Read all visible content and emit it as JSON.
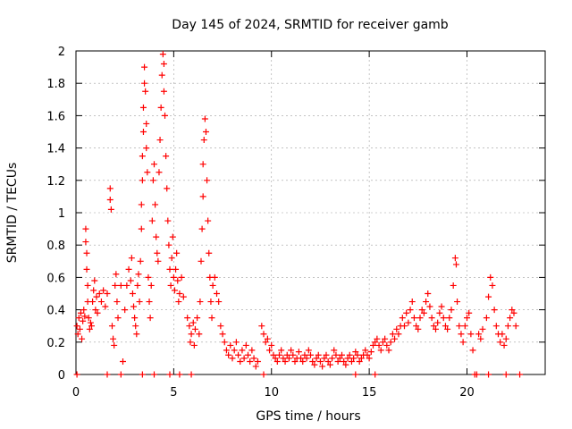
{
  "chart_data": {
    "type": "scatter",
    "title": "Day 145 of 2024, SRMTID for receiver gamb",
    "xlabel": "GPS time / hours",
    "ylabel": "SRMTID / TECUs",
    "xlim": [
      0,
      24
    ],
    "ylim": [
      0,
      2
    ],
    "xticks": [
      "0",
      "5",
      "10",
      "15",
      "20"
    ],
    "yticks": [
      "0",
      "0.2",
      "0.4",
      "0.6",
      "0.8",
      "1",
      "1.2",
      "1.4",
      "1.6",
      "1.8",
      "2"
    ],
    "grid": true,
    "marker": "+",
    "color": "#ff0000",
    "series": [
      {
        "name": "SRMTID",
        "points": [
          [
            0.05,
            0.3
          ],
          [
            0.1,
            0.25
          ],
          [
            0.15,
            0.35
          ],
          [
            0.2,
            0.28
          ],
          [
            0.25,
            0.38
          ],
          [
            0.3,
            0.22
          ],
          [
            0.35,
            0.33
          ],
          [
            0.4,
            0.4
          ],
          [
            0.45,
            0.36
          ],
          [
            0.5,
            0.9
          ],
          [
            0.5,
            0.82
          ],
          [
            0.55,
            0.75
          ],
          [
            0.55,
            0.65
          ],
          [
            0.6,
            0.55
          ],
          [
            0.6,
            0.45
          ],
          [
            0.65,
            0.35
          ],
          [
            0.7,
            0.28
          ],
          [
            0.75,
            0.32
          ],
          [
            0.8,
            0.3
          ],
          [
            0.85,
            0.45
          ],
          [
            0.9,
            0.52
          ],
          [
            0.95,
            0.58
          ],
          [
            1.0,
            0.4
          ],
          [
            1.05,
            0.48
          ],
          [
            1.1,
            0.38
          ],
          [
            1.2,
            0.5
          ],
          [
            1.3,
            0.45
          ],
          [
            1.4,
            0.52
          ],
          [
            1.5,
            0.42
          ],
          [
            1.6,
            0.5
          ],
          [
            1.75,
            1.15
          ],
          [
            1.75,
            1.08
          ],
          [
            1.8,
            1.02
          ],
          [
            1.85,
            0.3
          ],
          [
            1.9,
            0.22
          ],
          [
            1.95,
            0.18
          ],
          [
            2.0,
            0.55
          ],
          [
            2.05,
            0.62
          ],
          [
            2.1,
            0.45
          ],
          [
            2.15,
            0.35
          ],
          [
            2.3,
            0.55
          ],
          [
            2.4,
            0.08
          ],
          [
            2.5,
            0.4
          ],
          [
            2.6,
            0.55
          ],
          [
            2.7,
            0.65
          ],
          [
            2.8,
            0.58
          ],
          [
            2.85,
            0.72
          ],
          [
            2.9,
            0.5
          ],
          [
            2.95,
            0.42
          ],
          [
            3.0,
            0.35
          ],
          [
            3.05,
            0.3
          ],
          [
            3.1,
            0.25
          ],
          [
            3.15,
            0.55
          ],
          [
            3.2,
            0.62
          ],
          [
            3.25,
            0.45
          ],
          [
            3.3,
            0.7
          ],
          [
            3.35,
            0.9
          ],
          [
            3.35,
            1.05
          ],
          [
            3.4,
            1.2
          ],
          [
            3.4,
            1.35
          ],
          [
            3.45,
            1.5
          ],
          [
            3.45,
            1.65
          ],
          [
            3.5,
            1.8
          ],
          [
            3.5,
            1.9
          ],
          [
            3.55,
            1.75
          ],
          [
            3.6,
            1.55
          ],
          [
            3.6,
            1.4
          ],
          [
            3.65,
            1.25
          ],
          [
            3.7,
            0.6
          ],
          [
            3.75,
            0.45
          ],
          [
            3.8,
            0.35
          ],
          [
            3.85,
            0.55
          ],
          [
            3.9,
            0.95
          ],
          [
            3.95,
            1.2
          ],
          [
            4.0,
            1.3
          ],
          [
            4.05,
            1.05
          ],
          [
            4.1,
            0.85
          ],
          [
            4.15,
            0.75
          ],
          [
            4.2,
            0.7
          ],
          [
            4.25,
            1.25
          ],
          [
            4.3,
            1.45
          ],
          [
            4.35,
            1.65
          ],
          [
            4.4,
            1.85
          ],
          [
            4.45,
            1.98
          ],
          [
            4.5,
            1.92
          ],
          [
            4.5,
            1.75
          ],
          [
            4.55,
            1.6
          ],
          [
            4.6,
            1.35
          ],
          [
            4.65,
            1.15
          ],
          [
            4.7,
            0.95
          ],
          [
            4.75,
            0.8
          ],
          [
            4.8,
            0.65
          ],
          [
            4.85,
            0.55
          ],
          [
            4.9,
            0.72
          ],
          [
            4.95,
            0.85
          ],
          [
            5.0,
            0.6
          ],
          [
            5.05,
            0.52
          ],
          [
            5.1,
            0.65
          ],
          [
            5.15,
            0.75
          ],
          [
            5.2,
            0.58
          ],
          [
            5.25,
            0.45
          ],
          [
            5.3,
            0.5
          ],
          [
            5.4,
            0.6
          ],
          [
            5.5,
            0.48
          ],
          [
            5.7,
            0.35
          ],
          [
            5.8,
            0.3
          ],
          [
            5.85,
            0.2
          ],
          [
            5.9,
            0.25
          ],
          [
            6.0,
            0.32
          ],
          [
            6.05,
            0.18
          ],
          [
            6.1,
            0.28
          ],
          [
            6.2,
            0.35
          ],
          [
            6.3,
            0.25
          ],
          [
            6.35,
            0.45
          ],
          [
            6.4,
            0.7
          ],
          [
            6.45,
            0.9
          ],
          [
            6.5,
            1.1
          ],
          [
            6.5,
            1.3
          ],
          [
            6.55,
            1.45
          ],
          [
            6.6,
            1.58
          ],
          [
            6.65,
            1.5
          ],
          [
            6.7,
            1.2
          ],
          [
            6.75,
            0.95
          ],
          [
            6.8,
            0.75
          ],
          [
            6.85,
            0.6
          ],
          [
            6.9,
            0.45
          ],
          [
            6.95,
            0.35
          ],
          [
            7.0,
            0.55
          ],
          [
            7.1,
            0.6
          ],
          [
            7.2,
            0.5
          ],
          [
            7.3,
            0.45
          ],
          [
            7.4,
            0.3
          ],
          [
            7.5,
            0.25
          ],
          [
            7.6,
            0.2
          ],
          [
            7.7,
            0.15
          ],
          [
            7.8,
            0.12
          ],
          [
            7.9,
            0.18
          ],
          [
            8.0,
            0.1
          ],
          [
            8.1,
            0.15
          ],
          [
            8.2,
            0.2
          ],
          [
            8.3,
            0.12
          ],
          [
            8.4,
            0.08
          ],
          [
            8.5,
            0.15
          ],
          [
            8.6,
            0.1
          ],
          [
            8.7,
            0.18
          ],
          [
            8.8,
            0.12
          ],
          [
            8.9,
            0.08
          ],
          [
            9.0,
            0.15
          ],
          [
            9.1,
            0.1
          ],
          [
            9.2,
            0.05
          ],
          [
            9.3,
            0.08
          ],
          [
            9.5,
            0.3
          ],
          [
            9.6,
            0.25
          ],
          [
            9.7,
            0.2
          ],
          [
            9.8,
            0.22
          ],
          [
            9.9,
            0.15
          ],
          [
            10.0,
            0.18
          ],
          [
            10.1,
            0.12
          ],
          [
            10.2,
            0.1
          ],
          [
            10.3,
            0.08
          ],
          [
            10.4,
            0.12
          ],
          [
            10.5,
            0.15
          ],
          [
            10.6,
            0.1
          ],
          [
            10.7,
            0.08
          ],
          [
            10.8,
            0.12
          ],
          [
            10.9,
            0.1
          ],
          [
            11.0,
            0.15
          ],
          [
            11.1,
            0.12
          ],
          [
            11.2,
            0.08
          ],
          [
            11.3,
            0.1
          ],
          [
            11.4,
            0.14
          ],
          [
            11.5,
            0.1
          ],
          [
            11.6,
            0.08
          ],
          [
            11.7,
            0.12
          ],
          [
            11.8,
            0.1
          ],
          [
            11.9,
            0.15
          ],
          [
            12.0,
            0.12
          ],
          [
            12.1,
            0.08
          ],
          [
            12.2,
            0.06
          ],
          [
            12.3,
            0.1
          ],
          [
            12.4,
            0.12
          ],
          [
            12.5,
            0.08
          ],
          [
            12.6,
            0.05
          ],
          [
            12.7,
            0.1
          ],
          [
            12.8,
            0.12
          ],
          [
            12.9,
            0.08
          ],
          [
            13.0,
            0.06
          ],
          [
            13.1,
            0.1
          ],
          [
            13.2,
            0.15
          ],
          [
            13.3,
            0.12
          ],
          [
            13.4,
            0.08
          ],
          [
            13.5,
            0.1
          ],
          [
            13.6,
            0.12
          ],
          [
            13.7,
            0.08
          ],
          [
            13.8,
            0.06
          ],
          [
            13.9,
            0.1
          ],
          [
            14.0,
            0.12
          ],
          [
            14.1,
            0.08
          ],
          [
            14.2,
            0.1
          ],
          [
            14.3,
            0.14
          ],
          [
            14.4,
            0.12
          ],
          [
            14.5,
            0.08
          ],
          [
            14.6,
            0.1
          ],
          [
            14.7,
            0.12
          ],
          [
            14.8,
            0.15
          ],
          [
            14.9,
            0.12
          ],
          [
            15.0,
            0.1
          ],
          [
            15.1,
            0.14
          ],
          [
            15.2,
            0.18
          ],
          [
            15.3,
            0.2
          ],
          [
            15.4,
            0.22
          ],
          [
            15.5,
            0.18
          ],
          [
            15.6,
            0.15
          ],
          [
            15.7,
            0.2
          ],
          [
            15.8,
            0.22
          ],
          [
            15.9,
            0.18
          ],
          [
            16.0,
            0.15
          ],
          [
            16.1,
            0.2
          ],
          [
            16.2,
            0.25
          ],
          [
            16.3,
            0.22
          ],
          [
            16.4,
            0.28
          ],
          [
            16.5,
            0.25
          ],
          [
            16.6,
            0.3
          ],
          [
            16.7,
            0.35
          ],
          [
            16.8,
            0.3
          ],
          [
            16.9,
            0.38
          ],
          [
            17.0,
            0.32
          ],
          [
            17.1,
            0.4
          ],
          [
            17.2,
            0.45
          ],
          [
            17.3,
            0.35
          ],
          [
            17.4,
            0.3
          ],
          [
            17.5,
            0.28
          ],
          [
            17.6,
            0.35
          ],
          [
            17.7,
            0.4
          ],
          [
            17.8,
            0.38
          ],
          [
            17.9,
            0.45
          ],
          [
            18.0,
            0.5
          ],
          [
            18.1,
            0.42
          ],
          [
            18.2,
            0.35
          ],
          [
            18.3,
            0.3
          ],
          [
            18.4,
            0.28
          ],
          [
            18.5,
            0.32
          ],
          [
            18.6,
            0.38
          ],
          [
            18.7,
            0.42
          ],
          [
            18.8,
            0.35
          ],
          [
            18.9,
            0.3
          ],
          [
            19.0,
            0.28
          ],
          [
            19.1,
            0.35
          ],
          [
            19.2,
            0.4
          ],
          [
            19.3,
            0.55
          ],
          [
            19.4,
            0.72
          ],
          [
            19.45,
            0.68
          ],
          [
            19.5,
            0.45
          ],
          [
            19.6,
            0.3
          ],
          [
            19.7,
            0.25
          ],
          [
            19.8,
            0.2
          ],
          [
            19.9,
            0.3
          ],
          [
            20.0,
            0.35
          ],
          [
            20.1,
            0.38
          ],
          [
            20.2,
            0.25
          ],
          [
            20.3,
            0.15
          ],
          [
            20.6,
            0.25
          ],
          [
            20.7,
            0.22
          ],
          [
            20.8,
            0.28
          ],
          [
            21.0,
            0.35
          ],
          [
            21.1,
            0.48
          ],
          [
            21.2,
            0.6
          ],
          [
            21.3,
            0.55
          ],
          [
            21.4,
            0.4
          ],
          [
            21.5,
            0.3
          ],
          [
            21.6,
            0.25
          ],
          [
            21.7,
            0.2
          ],
          [
            21.8,
            0.25
          ],
          [
            21.9,
            0.18
          ],
          [
            22.0,
            0.22
          ],
          [
            22.1,
            0.3
          ],
          [
            22.2,
            0.35
          ],
          [
            22.3,
            0.4
          ],
          [
            22.4,
            0.38
          ],
          [
            22.5,
            0.3
          ],
          [
            0.05,
            0.0
          ],
          [
            1.6,
            0.0
          ],
          [
            2.3,
            0.0
          ],
          [
            3.4,
            0.0
          ],
          [
            4.0,
            0.0
          ],
          [
            4.8,
            0.0
          ],
          [
            5.3,
            0.0
          ],
          [
            5.9,
            0.0
          ],
          [
            9.6,
            0.0
          ],
          [
            14.3,
            0.0
          ],
          [
            15.3,
            0.0
          ],
          [
            20.4,
            0.0
          ],
          [
            20.5,
            0.0
          ],
          [
            21.1,
            0.0
          ],
          [
            22.0,
            0.0
          ],
          [
            22.7,
            0.0
          ]
        ]
      }
    ]
  }
}
